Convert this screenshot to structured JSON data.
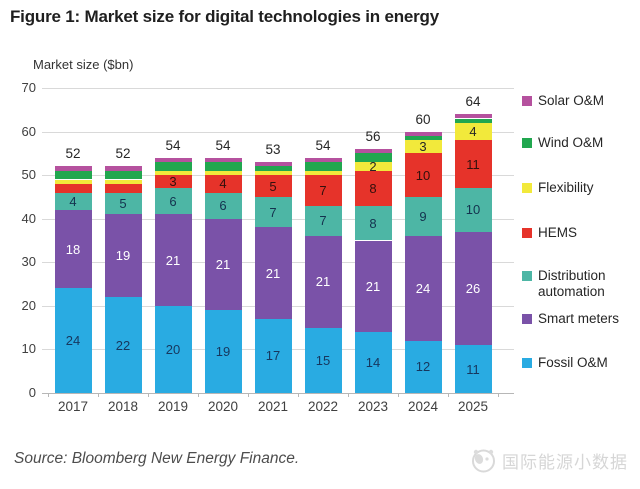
{
  "header": {
    "title": "Figure 1: Market size for digital technologies in energy"
  },
  "chart_data": {
    "type": "bar",
    "stacked": true,
    "title": "Figure 1: Market size for digital technologies in energy",
    "y_axis_title": "Market size ($bn)",
    "ylim": [
      0,
      70
    ],
    "ytick_step": 10,
    "y_ticks": [
      "0",
      "10",
      "20",
      "30",
      "40",
      "50",
      "60",
      "70"
    ],
    "grid": "horizontal",
    "legend_position": "right",
    "categories": [
      "2017",
      "2018",
      "2019",
      "2020",
      "2021",
      "2022",
      "2023",
      "2024",
      "2025"
    ],
    "totals": [
      "52",
      "52",
      "54",
      "54",
      "53",
      "54",
      "56",
      "60",
      "64"
    ],
    "series": [
      {
        "name": "Fossil O&M",
        "color": "#29ABE2",
        "label_color": "#17375E",
        "values": [
          24,
          22,
          20,
          19,
          17,
          15,
          14,
          12,
          11
        ],
        "labels": [
          "24",
          "22",
          "20",
          "19",
          "17",
          "15",
          "14",
          "12",
          "11"
        ]
      },
      {
        "name": "Smart meters",
        "color": "#7A52A8",
        "label_color": "#FFFFFF",
        "values": [
          18,
          19,
          21,
          21,
          21,
          21,
          21,
          24,
          26
        ],
        "labels": [
          "18",
          "19",
          "21",
          "21",
          "21",
          "21",
          "21",
          "24",
          "26"
        ]
      },
      {
        "name": "Distribution automation",
        "color": "#4DB6A5",
        "label_color": "#14324E",
        "values": [
          4,
          5,
          6,
          6,
          7,
          7,
          8,
          9,
          10
        ],
        "labels": [
          "4",
          "5",
          "6",
          "6",
          "7",
          "7",
          "8",
          "9",
          "10"
        ]
      },
      {
        "name": "HEMS",
        "color": "#E6332A",
        "label_color": "#33100D",
        "values": [
          2,
          2,
          3,
          4,
          5,
          7,
          8,
          10,
          11
        ],
        "labels": [
          "",
          "",
          "3",
          "4",
          "5",
          "7",
          "8",
          "10",
          "11"
        ]
      },
      {
        "name": "Flexibility",
        "color": "#F2E93B",
        "label_color": "#262626",
        "values": [
          1,
          1,
          1,
          1,
          1,
          1,
          2,
          3,
          4
        ],
        "labels": [
          "",
          "",
          "",
          "",
          "",
          "",
          "2",
          "3",
          "4"
        ]
      },
      {
        "name": "Wind O&M",
        "color": "#21A74F",
        "label_color": "#FFFFFF",
        "values": [
          2,
          2,
          2,
          2,
          1,
          2,
          2,
          1,
          1
        ],
        "labels": [
          "",
          "",
          "",
          "",
          "",
          "",
          "",
          "",
          ""
        ]
      },
      {
        "name": "Solar O&M",
        "color": "#B5519E",
        "label_color": "#FFFFFF",
        "values": [
          1,
          1,
          1,
          1,
          1,
          1,
          1,
          1,
          1
        ],
        "labels": [
          "",
          "",
          "",
          "",
          "",
          "",
          "",
          "",
          ""
        ]
      }
    ]
  },
  "footer": {
    "source": "Source: Bloomberg New Energy Finance."
  },
  "watermark": {
    "icon": "panda-logo-icon",
    "text": "国际能源小数据"
  }
}
